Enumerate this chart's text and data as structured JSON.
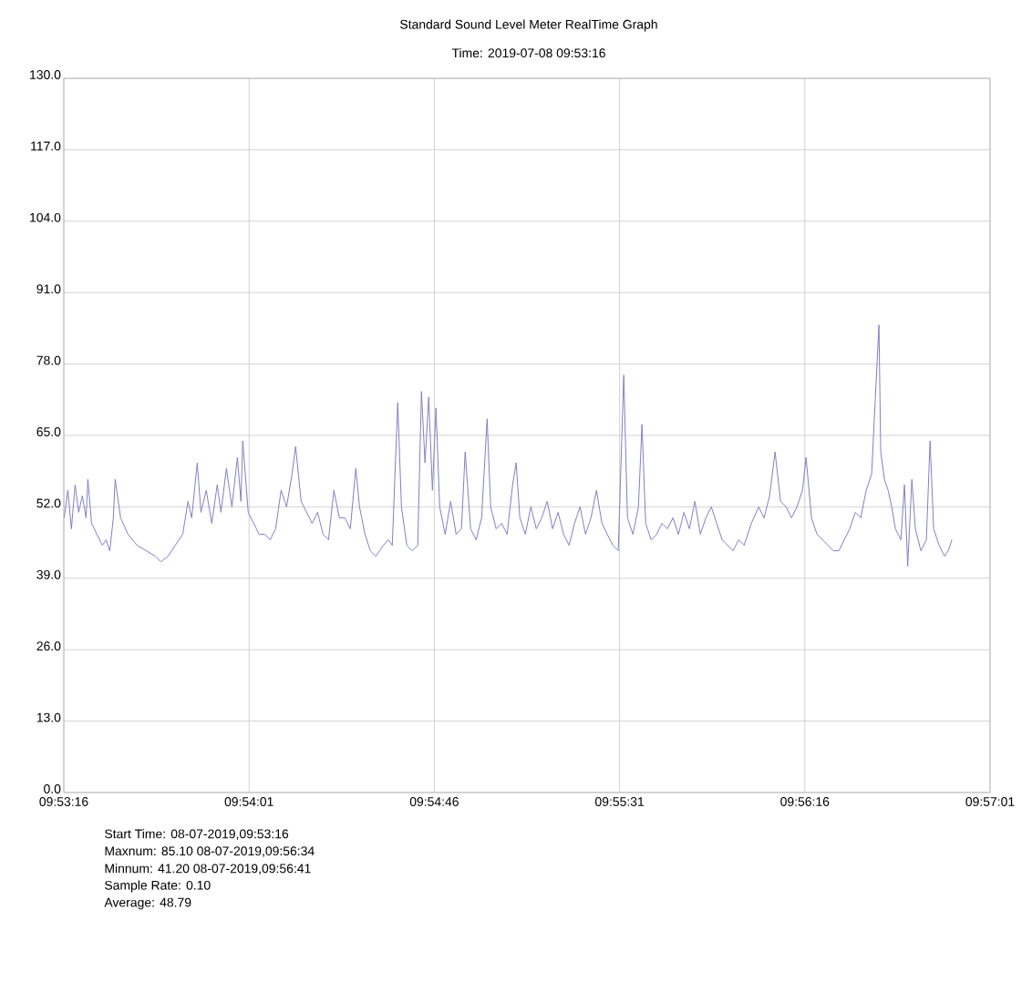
{
  "chart_data": {
    "type": "line",
    "title": "Standard Sound Level Meter RealTime Graph",
    "subtitle": "Time: 2019-07-08 09:53:16",
    "xlim": [
      9.887778,
      9.950278
    ],
    "xticks": [
      {
        "value": 9.887778,
        "label": "09:53:16"
      },
      {
        "value": 9.900278,
        "label": "09:54:01"
      },
      {
        "value": 9.912778,
        "label": "09:54:46"
      },
      {
        "value": 9.925278,
        "label": "09:55:31"
      },
      {
        "value": 9.937778,
        "label": "09:56:16"
      },
      {
        "value": 9.950278,
        "label": "09:57:01"
      }
    ],
    "ylim": [
      0,
      130
    ],
    "yticks": [
      {
        "value": 0,
        "label": "0.0"
      },
      {
        "value": 13,
        "label": "13.0"
      },
      {
        "value": 26,
        "label": "26.0"
      },
      {
        "value": 39,
        "label": "39.0"
      },
      {
        "value": 52,
        "label": "52.0"
      },
      {
        "value": 65,
        "label": "65.0"
      },
      {
        "value": 78,
        "label": "78.0"
      },
      {
        "value": 91,
        "label": "91.0"
      },
      {
        "value": 104,
        "label": "104.0"
      },
      {
        "value": 117,
        "label": "117.0"
      },
      {
        "value": 130,
        "label": "130.0"
      }
    ],
    "grid": true,
    "marker": "none",
    "line_style": "solid",
    "x": [
      9.8878,
      9.88805,
      9.88829,
      9.88854,
      9.88878,
      9.88903,
      9.88928,
      9.8894,
      9.88965,
      9.89001,
      9.89038,
      9.89063,
      9.89088,
      9.89112,
      9.89124,
      9.89161,
      9.89211,
      9.89272,
      9.89334,
      9.89395,
      9.89432,
      9.89481,
      9.8953,
      9.8958,
      9.89616,
      9.89641,
      9.89678,
      9.89703,
      9.89739,
      9.89776,
      9.89813,
      9.89838,
      9.89875,
      9.89912,
      9.89949,
      9.89973,
      9.89985,
      9.90022,
      9.90059,
      9.90096,
      9.90133,
      9.9017,
      9.90207,
      9.90244,
      9.90281,
      9.90318,
      9.90342,
      9.90379,
      9.90416,
      9.90453,
      9.9049,
      9.90527,
      9.90564,
      9.906,
      9.90637,
      9.90674,
      9.90711,
      9.90748,
      9.90773,
      9.9081,
      9.90846,
      9.90883,
      9.90933,
      9.90969,
      9.90994,
      9.91031,
      9.91056,
      9.91092,
      9.91129,
      9.91166,
      9.91191,
      9.91215,
      9.9124,
      9.91265,
      9.91289,
      9.91314,
      9.91351,
      9.91388,
      9.91425,
      9.91461,
      9.91486,
      9.91523,
      9.9156,
      9.91597,
      9.91634,
      9.91658,
      9.91695,
      9.91732,
      9.91769,
      9.91806,
      9.9183,
      9.91855,
      9.91892,
      9.91929,
      9.91966,
      9.92003,
      9.9204,
      9.92076,
      9.92113,
      9.9215,
      9.92187,
      9.92224,
      9.92261,
      9.92298,
      9.92335,
      9.92372,
      9.92409,
      9.92445,
      9.92482,
      9.92519,
      9.92556,
      9.92581,
      9.92618,
      9.92655,
      9.92679,
      9.92704,
      9.92741,
      9.92778,
      9.92814,
      9.92851,
      9.92888,
      9.92925,
      9.92962,
      9.92999,
      9.93036,
      9.93073,
      9.9311,
      9.93147,
      9.93183,
      9.9322,
      9.93257,
      9.93294,
      9.93331,
      9.93368,
      9.93417,
      9.93466,
      9.93503,
      9.9354,
      9.93577,
      9.93614,
      9.93651,
      9.93688,
      9.93725,
      9.93762,
      9.93786,
      9.93823,
      9.9386,
      9.93897,
      9.93934,
      9.93971,
      9.94008,
      9.94044,
      9.94081,
      9.94118,
      9.94155,
      9.94192,
      9.94229,
      9.94254,
      9.94278,
      9.9429,
      9.94315,
      9.9434,
      9.94364,
      9.94389,
      9.94426,
      9.9445,
      9.94472,
      9.945,
      9.94524,
      9.94561,
      9.94598,
      9.94623,
      9.94647,
      9.94684,
      9.94721,
      9.94746,
      9.9477
    ],
    "series": [
      {
        "color": "#7f7fc4",
        "values": [
          50,
          55,
          48,
          56,
          51,
          54,
          50,
          57,
          49,
          47,
          45,
          46,
          44,
          50,
          57,
          50,
          47,
          45,
          44,
          43,
          42,
          43,
          45,
          47,
          53,
          50,
          60,
          51,
          55,
          49,
          56,
          51,
          59,
          52,
          61,
          53,
          64,
          51,
          49,
          47,
          47,
          46,
          48,
          55,
          52,
          58,
          63,
          53,
          51,
          49,
          51,
          47,
          46,
          55,
          50,
          50,
          48,
          59,
          52,
          47,
          44,
          43,
          45,
          46,
          45,
          71,
          52,
          45,
          44,
          45,
          73,
          60,
          72,
          55,
          70,
          52,
          47,
          53,
          47,
          48,
          62,
          48,
          46,
          50,
          68,
          52,
          48,
          49,
          47,
          56,
          60,
          50,
          47,
          52,
          48,
          50,
          53,
          48,
          51,
          47,
          45,
          49,
          52,
          47,
          50,
          55,
          49,
          47,
          45,
          44,
          76,
          50,
          47,
          52,
          67,
          49,
          46,
          47,
          49,
          48,
          50,
          47,
          51,
          48,
          53,
          47,
          50,
          52,
          49,
          46,
          45,
          44,
          46,
          45,
          49,
          52,
          50,
          54,
          62,
          53,
          52,
          50,
          52,
          55,
          61,
          50,
          47,
          46,
          45,
          44,
          44,
          46,
          48,
          51,
          50,
          55,
          58,
          72,
          85.1,
          62,
          57,
          55,
          52,
          48,
          46,
          56,
          41.2,
          57,
          48,
          44,
          46,
          64,
          48,
          45,
          43,
          44,
          46
        ]
      }
    ],
    "annotations": [
      "Start Time: 08-07-2019,09:53:16",
      "Maxnum: 85.10 08-07-2019,09:56:34",
      "Minnum: 41.20 08-07-2019,09:56:41",
      "Sample Rate: 0.10",
      "Average: 48.79"
    ]
  }
}
